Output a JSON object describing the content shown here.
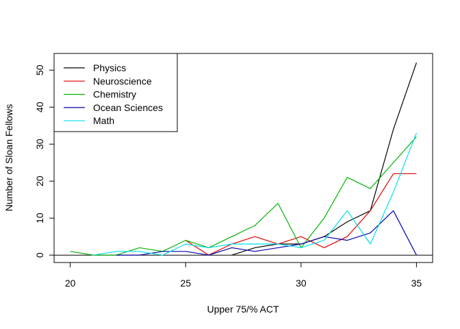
{
  "chart_data": {
    "type": "line",
    "title": "",
    "xlabel": "Upper 75/% ACT",
    "ylabel": "Number of Sloan Fellows",
    "xlim": [
      19.3,
      35.7
    ],
    "ylim": [
      -2,
      54.5
    ],
    "x_ticks": [
      20,
      25,
      30,
      35
    ],
    "y_ticks": [
      0,
      10,
      20,
      30,
      40,
      50
    ],
    "grid": false,
    "legend_position": "top-left",
    "reference_line_y": 0,
    "series": [
      {
        "name": "Physics",
        "color": "#000000",
        "points": [
          [
            27,
            0
          ],
          [
            28,
            2
          ],
          [
            29,
            3
          ],
          [
            30,
            3
          ],
          [
            31,
            5
          ],
          [
            32,
            9
          ],
          [
            33,
            12
          ],
          [
            34,
            34
          ],
          [
            35,
            52
          ]
        ]
      },
      {
        "name": "Neuroscience",
        "color": "#DF0000",
        "points": [
          [
            25,
            4
          ],
          [
            26,
            0
          ],
          [
            27,
            3
          ],
          [
            28,
            5
          ],
          [
            29,
            3
          ],
          [
            30,
            5
          ],
          [
            31,
            2
          ],
          [
            32,
            5
          ],
          [
            33,
            12
          ],
          [
            34,
            22
          ],
          [
            35,
            22
          ]
        ]
      },
      {
        "name": "Chemistry",
        "color": "#00B200",
        "points": [
          [
            20,
            1
          ],
          [
            21,
            0
          ],
          [
            22,
            0
          ],
          [
            23,
            2
          ],
          [
            24,
            1
          ],
          [
            25,
            4
          ],
          [
            26,
            2
          ],
          [
            27,
            5
          ],
          [
            28,
            8
          ],
          [
            29,
            14
          ],
          [
            30,
            2
          ],
          [
            31,
            10
          ],
          [
            32,
            21
          ],
          [
            33,
            18
          ],
          [
            34,
            25
          ],
          [
            35,
            32
          ]
        ]
      },
      {
        "name": "Ocean Sciences",
        "color": "#0000AA",
        "points": [
          [
            22,
            0
          ],
          [
            23,
            0
          ],
          [
            24,
            1
          ],
          [
            25,
            1
          ],
          [
            26,
            0
          ],
          [
            27,
            2
          ],
          [
            28,
            1
          ],
          [
            29,
            2
          ],
          [
            30,
            3
          ],
          [
            31,
            5
          ],
          [
            32,
            4
          ],
          [
            33,
            6
          ],
          [
            34,
            12
          ],
          [
            35,
            0
          ]
        ]
      },
      {
        "name": "Math",
        "color": "#00DDEE",
        "points": [
          [
            21,
            0
          ],
          [
            22,
            1
          ],
          [
            23,
            1
          ],
          [
            24,
            0
          ],
          [
            25,
            3
          ],
          [
            26,
            2
          ],
          [
            27,
            3
          ],
          [
            28,
            3
          ],
          [
            29,
            3
          ],
          [
            30,
            2
          ],
          [
            31,
            4
          ],
          [
            32,
            12
          ],
          [
            33,
            3
          ],
          [
            34,
            17
          ],
          [
            35,
            33
          ]
        ]
      }
    ]
  }
}
